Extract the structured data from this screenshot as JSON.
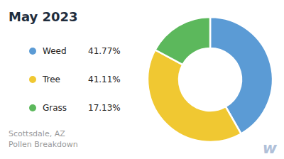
{
  "chart_data": {
    "type": "pie",
    "title": "May 2023",
    "subtitle": "Scottsdale, AZ\nPollen Breakdown",
    "categories": [
      "Weed",
      "Tree",
      "Grass"
    ],
    "values": [
      41.77,
      41.11,
      17.13
    ],
    "value_labels": [
      "41.77%",
      "41.11%",
      "17.13%"
    ],
    "colors": [
      "#5b9bd5",
      "#f0c832",
      "#5cb85c"
    ],
    "legend": "left",
    "annotations": [
      "w"
    ]
  }
}
